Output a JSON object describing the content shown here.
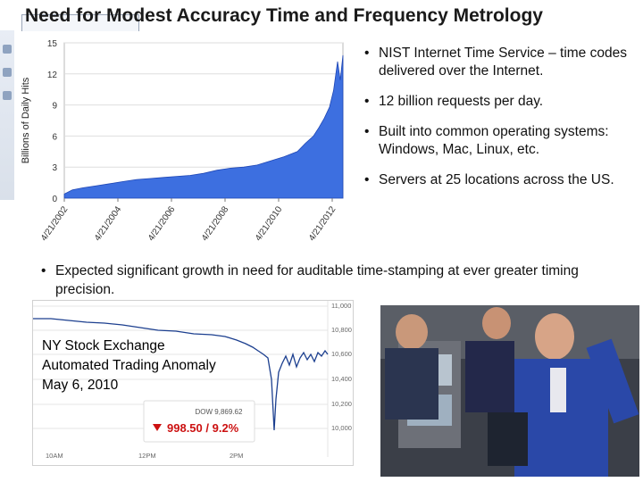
{
  "slide": {
    "title": "Need for Modest Accuracy Time and Frequency Metrology"
  },
  "bullets": [
    {
      "text": "NIST Internet Time Service – time codes delivered over the Internet."
    },
    {
      "text": "12 billion requests per day."
    },
    {
      "text": "Built into common operating systems: Windows, Mac, Linux, etc."
    },
    {
      "text": "Servers at 25 locations across the US."
    }
  ],
  "wide_bullet": {
    "text": "Expected significant growth in need for auditable time-stamping at ever greater timing precision."
  },
  "stock_panel": {
    "caption_lines": [
      "NY Stock Exchange",
      "Automated Trading Anomaly",
      "May 6, 2010"
    ],
    "dow_label": "DOW 9,869.62",
    "drop_text": "998.50 / 9.2%",
    "drop_color": "#cc1111",
    "y_ticks": [
      "11,000",
      "10,800",
      "10,600",
      "10,400",
      "10,200",
      "10,000"
    ],
    "x_ticks": [
      "10AM",
      "12PM",
      "2PM"
    ],
    "arrow_icon": "down-triangle-icon"
  },
  "photo": {
    "description_icon": "photo-traders-icon"
  },
  "chart_data": {
    "type": "area",
    "title": "",
    "xlabel": "",
    "ylabel": "Billions of Daily Hits",
    "ylim": [
      0,
      15
    ],
    "yticks": [
      0,
      3,
      6,
      9,
      12,
      15
    ],
    "xtick_labels": [
      "4/21/2002",
      "4/21/2004",
      "4/21/2006",
      "4/21/2008",
      "4/21/2010",
      "4/21/2012"
    ],
    "xlim": [
      2002.3,
      2012.7
    ],
    "fill_color": "#3d6fe0",
    "grid": true,
    "series": [
      {
        "x": [
          2002.3,
          2002.6,
          2003.0,
          2003.5,
          2004.0,
          2004.5,
          2005.0,
          2005.5,
          2006.0,
          2006.5,
          2007.0,
          2007.5,
          2008.0,
          2008.5,
          2009.0,
          2009.5,
          2010.0,
          2010.5,
          2011.0,
          2011.3,
          2011.6,
          2011.8,
          2012.0,
          2012.2,
          2012.35,
          2012.5,
          2012.6,
          2012.7
        ],
        "y": [
          0.4,
          0.8,
          1.0,
          1.2,
          1.4,
          1.6,
          1.8,
          1.9,
          2.0,
          2.1,
          2.2,
          2.4,
          2.7,
          2.9,
          3.0,
          3.2,
          3.6,
          4.0,
          4.5,
          5.3,
          6.0,
          6.8,
          7.7,
          8.8,
          10.4,
          13.2,
          11.4,
          13.8
        ]
      }
    ]
  }
}
